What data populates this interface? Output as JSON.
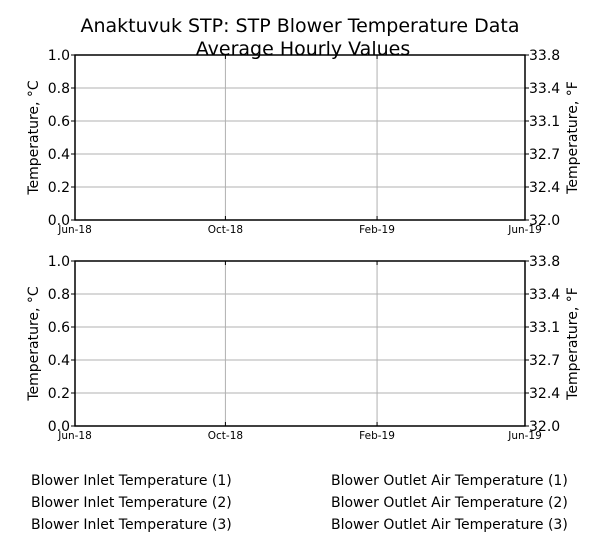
{
  "chart_data": [
    {
      "type": "line",
      "title_line1": "Anaktuvuk STP: STP Blower Temperature Data",
      "title_line2": "Average Hourly Values",
      "ylabel_left": "Temperature, °C",
      "ylabel_right": "Temperature, °F",
      "ylim": [
        0.0,
        1.0
      ],
      "yticks_left": [
        "0.0",
        "0.2",
        "0.4",
        "0.6",
        "0.8",
        "1.0"
      ],
      "yticks_right": [
        "32.0",
        "32.4",
        "32.7",
        "33.1",
        "33.4",
        "33.8"
      ],
      "x_range": [
        "2018-06-01",
        "2019-06-01"
      ],
      "xticks": [
        {
          "date": "2018-06-01",
          "label": "Jun-18"
        },
        {
          "date": "2018-10-01",
          "label": "Oct-18"
        },
        {
          "date": "2019-02-01",
          "label": "Feb-19"
        },
        {
          "date": "2019-06-01",
          "label": "Jun-19"
        }
      ],
      "grid": true,
      "series": []
    },
    {
      "type": "line",
      "ylabel_left": "Temperature, °C",
      "ylabel_right": "Temperature, °F",
      "ylim": [
        0.0,
        1.0
      ],
      "yticks_left": [
        "0.0",
        "0.2",
        "0.4",
        "0.6",
        "0.8",
        "1.0"
      ],
      "yticks_right": [
        "32.0",
        "32.4",
        "32.7",
        "33.1",
        "33.4",
        "33.8"
      ],
      "x_range": [
        "2018-06-01",
        "2019-06-01"
      ],
      "xticks": [
        {
          "date": "2018-06-01",
          "label": "Jun-18"
        },
        {
          "date": "2018-10-01",
          "label": "Oct-18"
        },
        {
          "date": "2019-02-01",
          "label": "Feb-19"
        },
        {
          "date": "2019-06-01",
          "label": "Jun-19"
        }
      ],
      "grid": true,
      "series": []
    }
  ],
  "legend": {
    "left": [
      "Blower Inlet Temperature (1)",
      "Blower Inlet Temperature (2)",
      "Blower Inlet Temperature (3)"
    ],
    "right": [
      "Blower Outlet Air Temperature (1)",
      "Blower Outlet Air Temperature (2)",
      "Blower Outlet Air Temperature (3)"
    ]
  }
}
